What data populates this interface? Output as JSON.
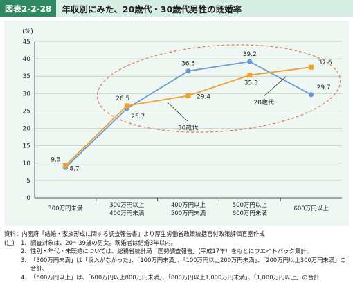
{
  "header": {
    "tag": "図表2-2-28",
    "title": "年収別にみた、20歳代・30歳代男性の既婚率"
  },
  "chart_data": {
    "type": "line",
    "yunit": "(%)",
    "ylim": [
      0,
      45
    ],
    "yticks": [
      0,
      5,
      10,
      15,
      20,
      25,
      30,
      35,
      40,
      45
    ],
    "grid": true,
    "categories": [
      [
        "300万円未満"
      ],
      [
        "300万円以上",
        "400万円未満"
      ],
      [
        "400万円以上",
        "500万円未満"
      ],
      [
        "500万円以上",
        "600万円未満"
      ],
      [
        "600万円以上"
      ]
    ],
    "series": [
      {
        "name": "20歳代",
        "values": [
          8.7,
          25.7,
          36.5,
          39.2,
          29.7
        ],
        "color": "#6b9bd1",
        "marker": "circle"
      },
      {
        "name": "30歳代",
        "values": [
          9.3,
          26.5,
          29.4,
          35.3,
          37.6
        ],
        "color": "#f0a030",
        "marker": "square"
      }
    ],
    "ellipse_color": "#e07a4f"
  },
  "notes": {
    "source_label": "資料：",
    "source_text": "内閣府「結婚・家族形成に関する調査報告書」より厚生労働省政策統括官付政策評価官室作成",
    "notes_label": "(注)",
    "items": [
      {
        "num": "1.",
        "text": "調査対象は、20～39歳の男女。既婚者は結婚3年以内。"
      },
      {
        "num": "2.",
        "text": "性別・年代・未既婚については、総務省統計局「国勢調査報告」(平成17年）をもとにウエイトバック集計。"
      },
      {
        "num": "3.",
        "text": "「300万円未満」は「収入がなかった」、「100万円未満」、「100万円以上200万円未満」、「200万円以上300万円未満」の合計。"
      },
      {
        "num": "4.",
        "text": "「600万円以上」は、「600万円以上800万円未満」、「800万円以上1,000万円未満」、「1,000万円以上」の合計"
      }
    ]
  }
}
